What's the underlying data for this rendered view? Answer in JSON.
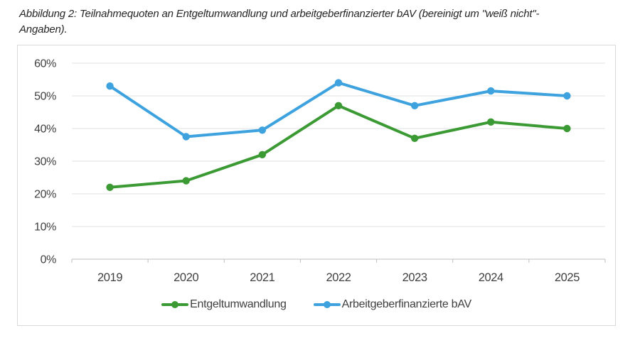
{
  "caption": {
    "line1": "Abbildung 2: Teilnahmequoten an Entgeltumwandlung und arbeitgeberfinanzierter bAV (bereinigt um \"weiß nicht\"-",
    "line2": "Angaben)."
  },
  "chart_data": {
    "type": "line",
    "title": "",
    "xlabel": "",
    "ylabel": "",
    "categories": [
      "2019",
      "2020",
      "2021",
      "2022",
      "2023",
      "2024",
      "2025"
    ],
    "series": [
      {
        "name": "Entgeltumwandlung",
        "color": "#3b9a33",
        "values": [
          22,
          24,
          32,
          47,
          37,
          42,
          40
        ]
      },
      {
        "name": "Arbeitgeberfinanzierte bAV",
        "color": "#3da2de",
        "values": [
          53,
          37.5,
          39.5,
          54,
          47,
          51.5,
          50
        ]
      }
    ],
    "ylim": [
      0,
      60
    ],
    "yticks": [
      0,
      10,
      20,
      30,
      40,
      50,
      60
    ],
    "ytick_labels": [
      "0%",
      "10%",
      "20%",
      "30%",
      "40%",
      "50%",
      "60%"
    ],
    "grid": true,
    "legend_position": "bottom"
  },
  "theme": {
    "grid_color": "#e2e2e2",
    "axis_color": "#bfbfbf",
    "label_color": "#404040",
    "card_border_color": "#d9d9d9",
    "caption_color": "#262626"
  }
}
